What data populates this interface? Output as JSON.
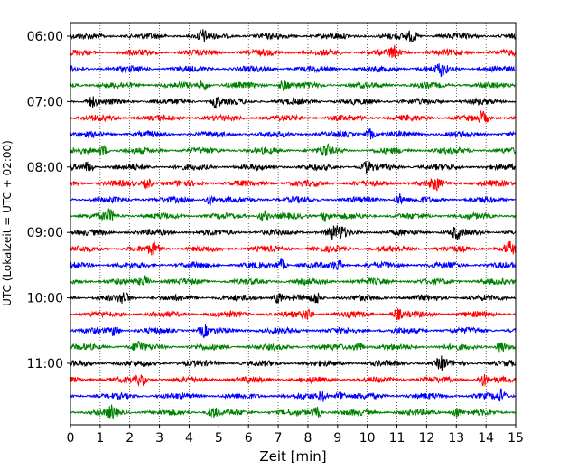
{
  "chart_data": {
    "type": "line",
    "title": "",
    "xlabel": "Zeit  [min]",
    "ylabel": "UTC (Lokalzeit = UTC + 02:00)",
    "xlim": [
      0,
      15
    ],
    "x_ticks": [
      0,
      1,
      2,
      3,
      4,
      5,
      6,
      7,
      8,
      9,
      10,
      11,
      12,
      13,
      14,
      15
    ],
    "x_tick_labels": [
      "0",
      "1",
      "2",
      "3",
      "4",
      "5",
      "6",
      "7",
      "8",
      "9",
      "10",
      "11",
      "12",
      "13",
      "14",
      "15"
    ],
    "y_tick_labels": [
      "06:00",
      "07:00",
      "08:00",
      "09:00",
      "10:00",
      "11:00"
    ],
    "grid_x": true,
    "grid_y": false,
    "trace_interval_min": 15,
    "trace_colors": [
      "#000000",
      "#ff0000",
      "#0000ff",
      "#008000"
    ],
    "traces": [
      {
        "start": "06:00",
        "events": [
          4.45,
          11.5
        ]
      },
      {
        "start": "06:15",
        "events": [
          10.9
        ]
      },
      {
        "start": "06:30",
        "events": [
          12.5
        ]
      },
      {
        "start": "06:45",
        "events": [
          4.5,
          7.2
        ]
      },
      {
        "start": "07:00",
        "events": [
          0.7,
          4.9
        ]
      },
      {
        "start": "07:15",
        "events": [
          13.9
        ]
      },
      {
        "start": "07:30",
        "events": [
          10.1
        ]
      },
      {
        "start": "07:45",
        "events": [
          1.1,
          8.6
        ]
      },
      {
        "start": "08:00",
        "events": [
          0.6,
          10.0
        ]
      },
      {
        "start": "08:15",
        "events": [
          2.6,
          12.3
        ]
      },
      {
        "start": "08:30",
        "events": [
          4.7,
          11.1
        ]
      },
      {
        "start": "08:45",
        "events": [
          1.3,
          6.5,
          8.6
        ]
      },
      {
        "start": "09:00",
        "events": [
          8.8,
          9.1,
          13.0
        ]
      },
      {
        "start": "09:15",
        "events": [
          2.8,
          14.8
        ]
      },
      {
        "start": "09:30",
        "events": [
          7.1,
          9.0
        ]
      },
      {
        "start": "09:45",
        "events": [
          2.5
        ]
      },
      {
        "start": "10:00",
        "events": [
          1.8,
          7.0,
          8.3
        ]
      },
      {
        "start": "10:15",
        "events": [
          8.0,
          11.0
        ]
      },
      {
        "start": "10:30",
        "events": [
          1.5,
          4.5
        ]
      },
      {
        "start": "10:45",
        "events": [
          2.3,
          9.7,
          14.5
        ]
      },
      {
        "start": "11:00",
        "events": [
          12.5
        ]
      },
      {
        "start": "11:15",
        "events": [
          2.4,
          13.9
        ]
      },
      {
        "start": "11:30",
        "events": [
          8.5,
          9.1,
          14.5
        ]
      },
      {
        "start": "11:45",
        "events": [
          1.4,
          4.8,
          8.3,
          13.0
        ]
      }
    ]
  }
}
